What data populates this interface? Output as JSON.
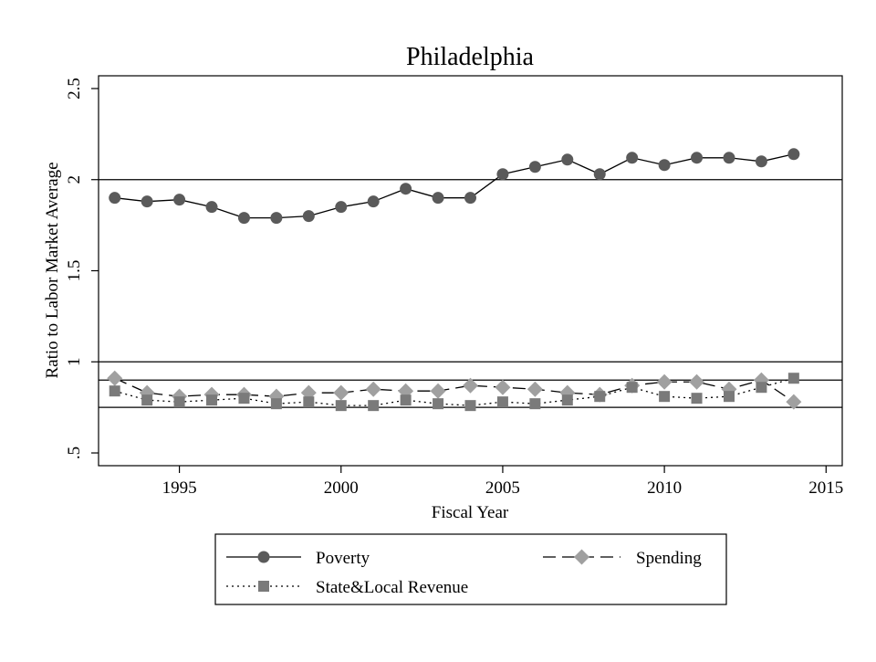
{
  "chart_data": {
    "type": "line",
    "title": "Philadelphia",
    "xlabel": "Fiscal Year",
    "ylabel": "Ratio to Labor Market Average",
    "xlim": [
      1992.5,
      2015.5
    ],
    "ylim": [
      0.43,
      2.57
    ],
    "x_ticks": [
      1995,
      2000,
      2005,
      2010,
      2015
    ],
    "y_ticks": [
      0.5,
      1,
      1.5,
      2,
      2.5
    ],
    "x_tick_labels": [
      "1995",
      "2000",
      "2005",
      "2010",
      "2015"
    ],
    "y_tick_labels": [
      ".5",
      "1",
      "1.5",
      "2",
      "2.5"
    ],
    "reference_lines": [
      0.75,
      0.9,
      1.0,
      2.0
    ],
    "grid": false,
    "legend_position": "bottom",
    "x": [
      1993,
      1994,
      1995,
      1996,
      1997,
      1998,
      1999,
      2000,
      2001,
      2002,
      2003,
      2004,
      2005,
      2006,
      2007,
      2008,
      2009,
      2010,
      2011,
      2012,
      2013,
      2014
    ],
    "series": [
      {
        "name": "Poverty",
        "line_style": "solid",
        "marker": "circle",
        "color": "#5a5a5a",
        "values": [
          1.9,
          1.88,
          1.89,
          1.85,
          1.79,
          1.79,
          1.8,
          1.85,
          1.88,
          1.95,
          1.9,
          1.9,
          2.03,
          2.07,
          2.11,
          2.03,
          2.12,
          2.08,
          2.12,
          2.12,
          2.1,
          2.14
        ]
      },
      {
        "name": "Spending",
        "line_style": "dashed",
        "marker": "diamond",
        "color": "#a0a0a0",
        "values": [
          0.91,
          0.83,
          0.81,
          0.82,
          0.82,
          0.81,
          0.83,
          0.83,
          0.85,
          0.84,
          0.84,
          0.87,
          0.86,
          0.85,
          0.83,
          0.82,
          0.87,
          0.89,
          0.89,
          0.85,
          0.9,
          0.78
        ]
      },
      {
        "name": "State&Local Revenue",
        "line_style": "dotted",
        "marker": "square",
        "color": "#7a7a7a",
        "values": [
          0.84,
          0.79,
          0.78,
          0.79,
          0.8,
          0.77,
          0.78,
          0.76,
          0.76,
          0.79,
          0.77,
          0.76,
          0.78,
          0.77,
          0.79,
          0.81,
          0.86,
          0.81,
          0.8,
          0.81,
          0.86,
          0.91
        ]
      }
    ]
  }
}
